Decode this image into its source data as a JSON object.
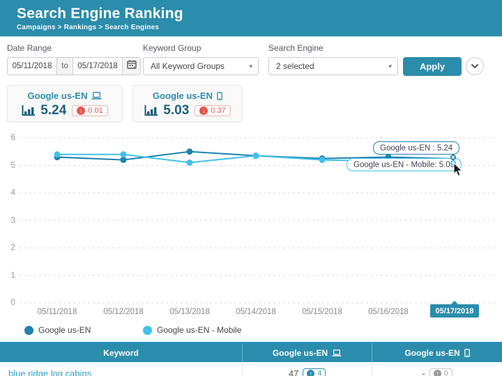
{
  "colors": {
    "accent": "#2b8cab",
    "negative": "#e2574b",
    "neutral_badge": "#9b9b9b",
    "link": "#2f9ec2",
    "value_text": "#1c607d",
    "highlight_label_bg": "#2b8cab"
  },
  "header": {
    "title": "Search Engine Ranking",
    "breadcrumb": "Campaigns > Rankings > Search Engines"
  },
  "filters": {
    "date_range": {
      "label": "Date Range",
      "from": "05/11/2018",
      "to_word": "to",
      "to": "05/17/2018"
    },
    "keyword_group": {
      "label": "Keyword Group",
      "value": "All Keyword Groups"
    },
    "search_engine": {
      "label": "Search Engine",
      "value": "2 selected"
    },
    "apply_label": "Apply"
  },
  "stat_cards": [
    {
      "name": "Google us-EN",
      "device": "desktop",
      "value": "5.24",
      "change": "0.01",
      "direction": "down"
    },
    {
      "name": "Google us-EN",
      "device": "mobile",
      "value": "5.03",
      "change": "0.37",
      "direction": "down"
    }
  ],
  "chart_data": {
    "type": "line",
    "x": [
      "05/11/2018",
      "05/12/2018",
      "05/13/2018",
      "05/14/2018",
      "05/15/2018",
      "05/16/2018",
      "05/17/2018"
    ],
    "series": [
      {
        "name": "Google us-EN",
        "color": "#1d82b0",
        "values": [
          5.3,
          5.2,
          5.5,
          5.35,
          5.25,
          5.3,
          5.24
        ]
      },
      {
        "name": "Google us-EN - Mobile",
        "color": "#41c1e9",
        "values": [
          5.4,
          5.4,
          5.1,
          5.35,
          5.2,
          5.15,
          5.03
        ]
      }
    ],
    "ylim": [
      0,
      6
    ],
    "yticks": [
      6,
      5,
      4,
      3,
      2,
      1,
      0
    ],
    "grid": "horizontal-dashed",
    "legend_position": "bottom-left",
    "highlighted_x": "05/17/2018",
    "tooltips": [
      "Google us-EN : 5.24",
      "Google us-EN - Mobile: 5.03"
    ]
  },
  "table": {
    "columns": [
      {
        "label": "Keyword",
        "device": null
      },
      {
        "label": "Google us-EN",
        "device": "desktop"
      },
      {
        "label": "Google us-EN",
        "device": "mobile"
      }
    ],
    "rows": [
      {
        "keyword": "blue ridge log cabins",
        "desktop_value": "47",
        "desktop_change": "4",
        "desktop_direction": "up",
        "mobile_value": "-",
        "mobile_change": "0",
        "mobile_direction": "up"
      }
    ]
  }
}
